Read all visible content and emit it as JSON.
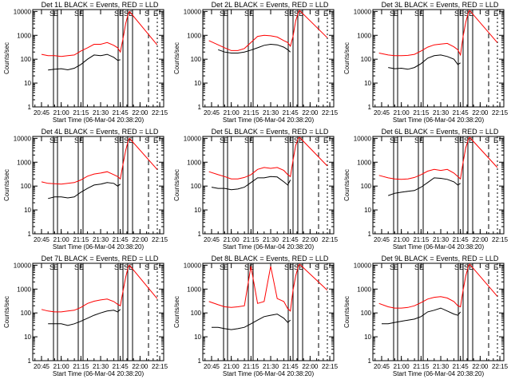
{
  "figure": {
    "background": "#ffffff",
    "axis_color": "#000000",
    "events_color": "#000000",
    "lld_color": "#ff0000"
  },
  "chart_data": [
    {
      "type": "line",
      "title": "Det  1L BLACK = Events, RED = LLD",
      "xlabel": "Start Time (06-Mar-04 20:38:20)",
      "ylabel": "Counts/sec",
      "x_ticks": [
        "20:45",
        "21:00",
        "21:15",
        "21:30",
        "21:45",
        "22:00",
        "22:15"
      ],
      "y_ticks": [
        "1",
        "10",
        "100",
        "1000",
        "10000"
      ],
      "y_scale": "log",
      "ylim": [
        1,
        12000
      ],
      "markers": [
        "S",
        "E",
        "S",
        "E",
        "S",
        "E",
        "S",
        "E",
        "S",
        "E"
      ],
      "series": [
        {
          "color": "#000000",
          "x": [
            "20:50",
            "20:55",
            "21:00",
            "21:05",
            "21:10",
            "21:15",
            "21:20",
            "21:25",
            "21:30",
            "21:35",
            "21:40",
            "21:43",
            "21:45"
          ],
          "y": [
            35,
            38,
            40,
            36,
            42,
            60,
            100,
            150,
            140,
            160,
            120,
            90,
            95
          ]
        },
        {
          "color": "#ff0000",
          "x": [
            "20:45",
            "20:50",
            "20:55",
            "21:00",
            "21:05",
            "21:10",
            "21:15",
            "21:20",
            "21:25",
            "21:30",
            "21:35",
            "21:40",
            "21:43",
            "21:45",
            "21:47",
            "21:49",
            "21:51",
            "21:52",
            "22:13"
          ],
          "y": [
            160,
            140,
            140,
            130,
            140,
            150,
            220,
            300,
            420,
            420,
            500,
            380,
            300,
            200,
            700,
            3000,
            8000,
            10000,
            400
          ]
        }
      ]
    },
    {
      "type": "line",
      "title": "Det  2L BLACK = Events, RED = LLD",
      "xlabel": "Start Time (06-Mar-04 20:38:20)",
      "ylabel": "Counts/sec",
      "x_ticks": [
        "20:45",
        "21:00",
        "21:15",
        "21:30",
        "21:45",
        "22:00",
        "22:15"
      ],
      "y_ticks": [
        "1",
        "10",
        "100",
        "1000",
        "10000"
      ],
      "y_scale": "log",
      "ylim": [
        1,
        12000
      ],
      "markers": [
        "S",
        "E",
        "S",
        "E",
        "S",
        "E",
        "S",
        "E",
        "S",
        "E"
      ],
      "series": [
        {
          "color": "#000000",
          "x": [
            "20:50",
            "20:55",
            "21:00",
            "21:05",
            "21:10",
            "21:15",
            "21:20",
            "21:25",
            "21:30",
            "21:35",
            "21:40",
            "21:43",
            "21:45"
          ],
          "y": [
            250,
            200,
            180,
            180,
            200,
            240,
            300,
            380,
            420,
            400,
            320,
            250,
            200
          ]
        },
        {
          "color": "#ff0000",
          "x": [
            "20:43",
            "20:50",
            "20:55",
            "21:00",
            "21:05",
            "21:10",
            "21:15",
            "21:20",
            "21:25",
            "21:30",
            "21:35",
            "21:40",
            "21:43",
            "21:45",
            "21:47",
            "21:49",
            "21:51",
            "21:52",
            "22:13"
          ],
          "y": [
            600,
            400,
            300,
            230,
            230,
            280,
            500,
            900,
            1000,
            950,
            850,
            600,
            500,
            350,
            900,
            4000,
            9000,
            11000,
            800
          ]
        }
      ]
    },
    {
      "type": "line",
      "title": "Det  3L BLACK = Events, RED = LLD",
      "xlabel": "Start Time (06-Mar-04 20:38:20)",
      "ylabel": "Counts/sec",
      "x_ticks": [
        "20:45",
        "21:00",
        "21:15",
        "21:30",
        "21:45",
        "22:00",
        "22:15"
      ],
      "y_ticks": [
        "1",
        "10",
        "100",
        "1000",
        "10000"
      ],
      "y_scale": "log",
      "ylim": [
        1,
        12000
      ],
      "markers": [
        "S",
        "E",
        "S",
        "E",
        "S",
        "E",
        "S",
        "E",
        "S",
        "E"
      ],
      "series": [
        {
          "color": "#000000",
          "x": [
            "20:50",
            "20:55",
            "21:00",
            "21:05",
            "21:10",
            "21:15",
            "21:20",
            "21:25",
            "21:30",
            "21:35",
            "21:40",
            "21:43",
            "21:45"
          ],
          "y": [
            45,
            40,
            42,
            38,
            45,
            65,
            110,
            140,
            150,
            130,
            100,
            60,
            70
          ]
        },
        {
          "color": "#ff0000",
          "x": [
            "20:43",
            "20:50",
            "20:55",
            "21:00",
            "21:05",
            "21:10",
            "21:15",
            "21:20",
            "21:25",
            "21:30",
            "21:35",
            "21:40",
            "21:43",
            "21:45",
            "21:47",
            "21:49",
            "21:51",
            "21:52",
            "22:13"
          ],
          "y": [
            180,
            150,
            140,
            140,
            145,
            160,
            220,
            320,
            400,
            430,
            460,
            330,
            250,
            150,
            900,
            3500,
            9000,
            11000,
            500
          ]
        }
      ]
    },
    {
      "type": "line",
      "title": "Det  4L BLACK = Events, RED = LLD",
      "xlabel": "Start Time (06-Mar-04 20:38:20)",
      "ylabel": "Counts/sec",
      "x_ticks": [
        "20:45",
        "21:00",
        "21:15",
        "21:30",
        "21:45",
        "22:00",
        "22:15"
      ],
      "y_ticks": [
        "1",
        "10",
        "100",
        "1000",
        "10000"
      ],
      "y_scale": "log",
      "ylim": [
        1,
        12000
      ],
      "markers": [
        "S",
        "E",
        "S",
        "E",
        "S",
        "E",
        "S",
        "E",
        "S",
        "E"
      ],
      "series": [
        {
          "color": "#000000",
          "x": [
            "20:50",
            "20:55",
            "21:00",
            "21:05",
            "21:10",
            "21:15",
            "21:20",
            "21:25",
            "21:30",
            "21:35",
            "21:40",
            "21:43",
            "21:45"
          ],
          "y": [
            30,
            35,
            35,
            32,
            35,
            55,
            80,
            110,
            120,
            140,
            130,
            100,
            120
          ]
        },
        {
          "color": "#ff0000",
          "x": [
            "20:45",
            "20:50",
            "20:55",
            "21:00",
            "21:05",
            "21:10",
            "21:15",
            "21:20",
            "21:25",
            "21:30",
            "21:35",
            "21:40",
            "21:43",
            "21:45",
            "21:47",
            "21:49",
            "21:51",
            "21:52",
            "22:13"
          ],
          "y": [
            150,
            130,
            125,
            120,
            130,
            140,
            180,
            260,
            320,
            350,
            400,
            300,
            250,
            200,
            800,
            3000,
            8000,
            10000,
            500
          ]
        }
      ]
    },
    {
      "type": "line",
      "title": "Det  5L BLACK = Events, RED = LLD",
      "xlabel": "Start Time (06-Mar-04 20:38:20)",
      "ylabel": "Counts/sec",
      "x_ticks": [
        "20:45",
        "21:00",
        "21:15",
        "21:30",
        "21:45",
        "22:00",
        "22:15"
      ],
      "y_ticks": [
        "1",
        "10",
        "100",
        "1000",
        "10000"
      ],
      "y_scale": "log",
      "ylim": [
        1,
        12000
      ],
      "markers": [
        "S",
        "E",
        "S",
        "E",
        "S",
        "E",
        "S",
        "E",
        "S",
        "E"
      ],
      "series": [
        {
          "color": "#000000",
          "x": [
            "20:45",
            "20:50",
            "20:55",
            "21:00",
            "21:05",
            "21:10",
            "21:15",
            "21:20",
            "21:25",
            "21:30",
            "21:35",
            "21:40",
            "21:43",
            "21:45"
          ],
          "y": [
            90,
            80,
            80,
            70,
            75,
            90,
            140,
            220,
            220,
            250,
            240,
            150,
            110,
            180
          ]
        },
        {
          "color": "#ff0000",
          "x": [
            "20:43",
            "20:50",
            "20:55",
            "21:00",
            "21:05",
            "21:10",
            "21:15",
            "21:20",
            "21:25",
            "21:30",
            "21:35",
            "21:40",
            "21:43",
            "21:45",
            "21:47",
            "21:49",
            "21:51",
            "21:52",
            "22:13"
          ],
          "y": [
            400,
            300,
            250,
            200,
            200,
            230,
            300,
            500,
            600,
            550,
            600,
            450,
            300,
            250,
            1200,
            5000,
            10000,
            11000,
            700
          ]
        }
      ]
    },
    {
      "type": "line",
      "title": "Det  6L BLACK = Events, RED = LLD",
      "xlabel": "Start Time (06-Mar-04 20:38:20)",
      "ylabel": "Counts/sec",
      "x_ticks": [
        "20:45",
        "21:00",
        "21:15",
        "21:30",
        "21:45",
        "22:00",
        "22:15"
      ],
      "y_ticks": [
        "1",
        "10",
        "100",
        "1000",
        "10000"
      ],
      "y_scale": "log",
      "ylim": [
        1,
        12000
      ],
      "markers": [
        "S",
        "E",
        "S",
        "E",
        "S",
        "E",
        "S",
        "E",
        "S",
        "E"
      ],
      "series": [
        {
          "color": "#000000",
          "x": [
            "20:50",
            "20:55",
            "21:00",
            "21:05",
            "21:10",
            "21:15",
            "21:20",
            "21:25",
            "21:30",
            "21:35",
            "21:40",
            "21:43",
            "21:45"
          ],
          "y": [
            40,
            50,
            55,
            60,
            65,
            90,
            140,
            220,
            210,
            190,
            150,
            110,
            130
          ]
        },
        {
          "color": "#ff0000",
          "x": [
            "20:43",
            "20:50",
            "20:55",
            "21:00",
            "21:05",
            "21:10",
            "21:15",
            "21:20",
            "21:25",
            "21:30",
            "21:35",
            "21:40",
            "21:43",
            "21:45",
            "21:47",
            "21:49",
            "21:51",
            "21:52",
            "22:13"
          ],
          "y": [
            280,
            220,
            200,
            190,
            200,
            230,
            300,
            420,
            500,
            450,
            500,
            350,
            250,
            200,
            1000,
            4000,
            9000,
            11000,
            600
          ]
        }
      ]
    },
    {
      "type": "line",
      "title": "Det  7L BLACK = Events, RED = LLD",
      "xlabel": "Start Time (06-Mar-04 20:38:20)",
      "ylabel": "Counts/sec",
      "x_ticks": [
        "20:45",
        "21:00",
        "21:15",
        "21:30",
        "21:45",
        "22:00",
        "22:15"
      ],
      "y_ticks": [
        "1",
        "10",
        "100",
        "1000",
        "10000"
      ],
      "y_scale": "log",
      "ylim": [
        1,
        12000
      ],
      "markers": [
        "S",
        "E",
        "S",
        "E",
        "S",
        "E",
        "S",
        "E",
        "S",
        "E"
      ],
      "series": [
        {
          "color": "#000000",
          "x": [
            "20:50",
            "20:55",
            "21:00",
            "21:05",
            "21:10",
            "21:15",
            "21:20",
            "21:25",
            "21:30",
            "21:35",
            "21:40",
            "21:43",
            "21:45"
          ],
          "y": [
            35,
            35,
            35,
            30,
            35,
            45,
            60,
            80,
            100,
            120,
            130,
            110,
            140
          ]
        },
        {
          "color": "#ff0000",
          "x": [
            "20:45",
            "20:50",
            "20:55",
            "21:00",
            "21:05",
            "21:10",
            "21:15",
            "21:20",
            "21:25",
            "21:30",
            "21:35",
            "21:40",
            "21:43",
            "21:45",
            "21:47",
            "21:49",
            "21:51",
            "21:52",
            "22:13"
          ],
          "y": [
            140,
            120,
            110,
            110,
            120,
            130,
            170,
            250,
            310,
            350,
            380,
            300,
            230,
            200,
            800,
            3000,
            8500,
            10000,
            400
          ]
        }
      ]
    },
    {
      "type": "line",
      "title": "Det  8L BLACK = Events, RED = LLD",
      "xlabel": "Start Time (06-Mar-04 20:38:20)",
      "ylabel": "Counts/sec",
      "x_ticks": [
        "20:45",
        "21:00",
        "21:15",
        "21:30",
        "21:45",
        "22:00",
        "22:15"
      ],
      "y_ticks": [
        "1",
        "10",
        "100",
        "1000",
        "10000"
      ],
      "y_scale": "log",
      "ylim": [
        1,
        12000
      ],
      "markers": [
        "S",
        "E",
        "S",
        "E",
        "S",
        "E",
        "S",
        "E",
        "S",
        "E"
      ],
      "series": [
        {
          "color": "#000000",
          "x": [
            "20:45",
            "20:50",
            "20:55",
            "21:00",
            "21:05",
            "21:10",
            "21:15",
            "21:20",
            "21:25",
            "21:30",
            "21:35",
            "21:40",
            "21:43",
            "21:45"
          ],
          "y": [
            25,
            25,
            22,
            20,
            22,
            25,
            35,
            50,
            70,
            80,
            90,
            60,
            40,
            50
          ]
        },
        {
          "color": "#ff0000",
          "x": [
            "20:43",
            "20:50",
            "20:55",
            "21:00",
            "21:05",
            "21:10",
            "21:15",
            "21:20",
            "21:25",
            "21:30",
            "21:35",
            "21:40",
            "21:43",
            "21:45",
            "21:47",
            "21:49",
            "21:51",
            "21:52",
            "22:13"
          ],
          "y": [
            300,
            220,
            180,
            170,
            180,
            200,
            9000,
            250,
            300,
            9000,
            400,
            300,
            150,
            120,
            900,
            3500,
            9000,
            11000,
            900
          ]
        }
      ]
    },
    {
      "type": "line",
      "title": "Det  9L BLACK = Events, RED = LLD",
      "xlabel": "Start Time (06-Mar-04 20:38:20)",
      "ylabel": "Counts/sec",
      "x_ticks": [
        "20:45",
        "21:00",
        "21:15",
        "21:30",
        "21:45",
        "22:00",
        "22:15"
      ],
      "y_ticks": [
        "1",
        "10",
        "100",
        "1000",
        "10000"
      ],
      "y_scale": "log",
      "ylim": [
        1,
        12000
      ],
      "markers": [
        "S",
        "E",
        "S",
        "E",
        "S",
        "E",
        "S",
        "E",
        "S",
        "E"
      ],
      "series": [
        {
          "color": "#000000",
          "x": [
            "20:45",
            "20:50",
            "20:55",
            "21:00",
            "21:05",
            "21:10",
            "21:15",
            "21:20",
            "21:25",
            "21:30",
            "21:35",
            "21:40",
            "21:43",
            "21:45"
          ],
          "y": [
            35,
            35,
            40,
            45,
            50,
            55,
            70,
            110,
            130,
            160,
            120,
            90,
            80,
            110
          ]
        },
        {
          "color": "#ff0000",
          "x": [
            "20:43",
            "20:50",
            "20:55",
            "21:00",
            "21:05",
            "21:10",
            "21:15",
            "21:20",
            "21:25",
            "21:30",
            "21:35",
            "21:40",
            "21:43",
            "21:45",
            "21:47",
            "21:49",
            "21:51",
            "21:52",
            "22:13"
          ],
          "y": [
            250,
            180,
            160,
            160,
            170,
            200,
            270,
            380,
            450,
            480,
            420,
            300,
            200,
            180,
            900,
            3500,
            9000,
            11000,
            500
          ]
        }
      ]
    }
  ]
}
